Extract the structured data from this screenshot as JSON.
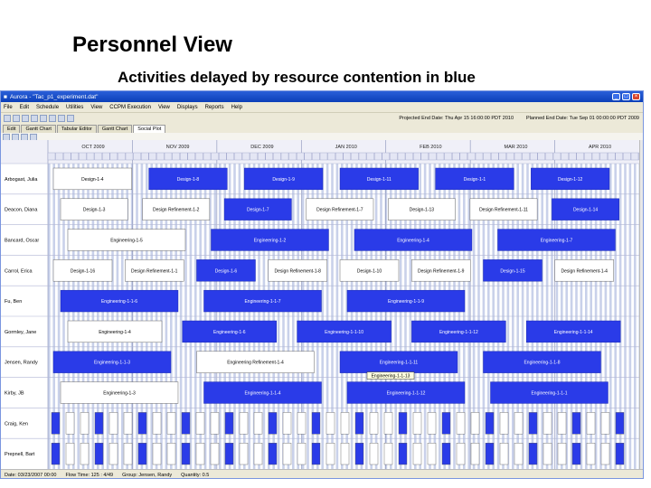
{
  "slide": {
    "title": "Personnel View",
    "subtitle": "Activities delayed by resource contention in blue"
  },
  "app": {
    "window_title": "Aurora - \"Tac_p1_experiment.dat\"",
    "menus": [
      "File",
      "Edit",
      "Schedule",
      "Utilities",
      "View",
      "CCPM Execution",
      "View",
      "Displays",
      "Reports",
      "Help"
    ],
    "projected_end": "Projected End Date: Thu Apr 15 16:00:00 PDT 2010",
    "planned_end": "Planned End Date: Tue Sep 01 00:00:00 PDT 2009",
    "tabs": [
      "Edit",
      "Gantt Chart",
      "Tabular Editor",
      "Gantt Chart",
      "Social Plot"
    ],
    "active_tab": 4,
    "months": [
      "OCT 2009",
      "NOV 2009",
      "DEC 2009",
      "JAN 2010",
      "FEB 2010",
      "MAR 2010",
      "APR 2010"
    ],
    "tooltip": "Engineering-1-1-13",
    "status": {
      "date": "Date: 03/23/2007 00:00",
      "flow": "Flow Time: 125 : 4/49",
      "group": "Group: Jensen, Randy",
      "quantity": "Quantity: 0.5"
    },
    "colors": {
      "bar": "#2a3be8",
      "grid": "#c9d1ea",
      "delayed": "blue"
    }
  },
  "rows": [
    {
      "name": "Arbogast, Julia",
      "bars": [
        {
          "label": "Design-1-4",
          "d": 0
        },
        {
          "label": "Design-1-8",
          "d": 1
        },
        {
          "label": "Design-1-9",
          "d": 1
        },
        {
          "label": "Design-1-11",
          "d": 1
        },
        {
          "label": "Design-1-1",
          "d": 1
        },
        {
          "label": "Design-1-12",
          "d": 1
        }
      ]
    },
    {
      "name": "Deacon, Diana",
      "bars": [
        {
          "label": "Design-1-3",
          "d": 0
        },
        {
          "label": "Design Refinement-1-2",
          "d": 0
        },
        {
          "label": "Design-1-7",
          "d": 1
        },
        {
          "label": "Design Refinement-1-7",
          "d": 0
        },
        {
          "label": "Design-1-13",
          "d": 0
        },
        {
          "label": "Design Refinement-1-11",
          "d": 0
        },
        {
          "label": "Design-1-14",
          "d": 1
        }
      ]
    },
    {
      "name": "Bancard, Oscar",
      "bars": [
        {
          "label": "Engineering-1-5",
          "d": 0
        },
        {
          "label": "Engineering-1-2",
          "d": 1
        },
        {
          "label": "Engineering-1-4",
          "d": 1
        },
        {
          "label": "Engineering-1-7",
          "d": 1
        }
      ]
    },
    {
      "name": "Carrol, Erica",
      "bars": [
        {
          "label": "Design-1-16",
          "d": 0
        },
        {
          "label": "Design Refinement-1-1",
          "d": 0
        },
        {
          "label": "Design-1-6",
          "d": 1
        },
        {
          "label": "Design Refinement-1-8",
          "d": 0
        },
        {
          "label": "Design-1-10",
          "d": 0
        },
        {
          "label": "Design Refinement-1-9",
          "d": 0
        },
        {
          "label": "Design-1-15",
          "d": 1
        },
        {
          "label": "Design Refinement-1-4",
          "d": 0
        }
      ]
    },
    {
      "name": "Fu, Ben",
      "bars": [
        {
          "label": "Engineering-1-1-6",
          "d": 1
        },
        {
          "label": "Engineering-1-1-7",
          "d": 1
        },
        {
          "label": "Engineering-1-1-9",
          "d": 1
        }
      ]
    },
    {
      "name": "Gormley, Jane",
      "bars": [
        {
          "label": "Engineering-1-4",
          "d": 0
        },
        {
          "label": "Engineering-1-6",
          "d": 1
        },
        {
          "label": "Engineering-1-1-10",
          "d": 1
        },
        {
          "label": "Engineering-1-1-12",
          "d": 1
        },
        {
          "label": "Engineering-1-1-14",
          "d": 1
        }
      ]
    },
    {
      "name": "Jensen, Randy",
      "bars": [
        {
          "label": "Engineering-1-1-3",
          "d": 1
        },
        {
          "label": "Engineering Refinement-1-4",
          "d": 0
        },
        {
          "label": "Engineering-1-1-11",
          "d": 1
        },
        {
          "label": "Engineering-1-1-8",
          "d": 1
        }
      ]
    },
    {
      "name": "Kirby, JB",
      "bars": [
        {
          "label": "Engineering-1-3",
          "d": 0
        },
        {
          "label": "Engineering-1-1-4",
          "d": 1
        },
        {
          "label": "Engineering-1-1-12",
          "d": 1
        },
        {
          "label": "Engineering-1-1-1",
          "d": 1
        }
      ]
    },
    {
      "name": "Craig, Ken",
      "bars": []
    },
    {
      "name": "Prepnell, Bart",
      "bars": []
    }
  ]
}
